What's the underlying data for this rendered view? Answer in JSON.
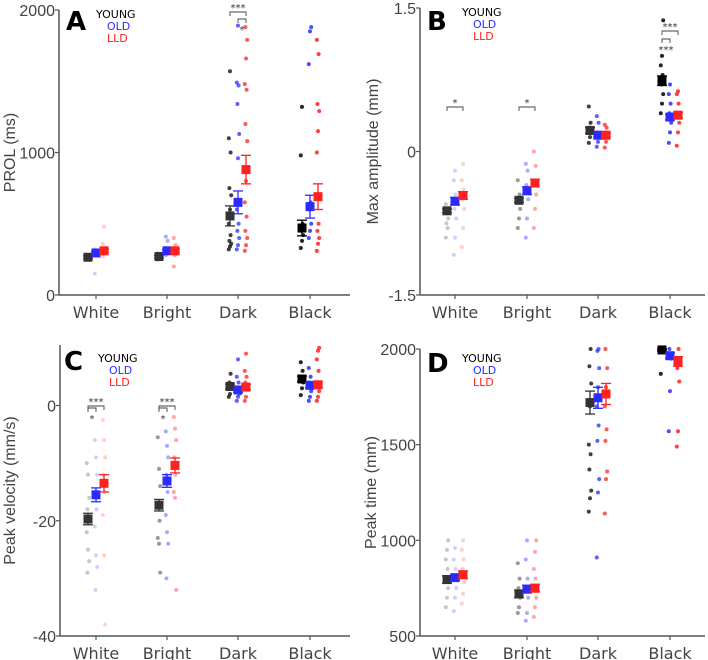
{
  "legend": [
    {
      "name": "YOUNG",
      "color": "#000000"
    },
    {
      "name": "OLD",
      "color": "#2b2bff"
    },
    {
      "name": "LLD",
      "color": "#ff2020"
    }
  ],
  "chart_data": [
    {
      "type": "scatter",
      "panel": "A",
      "ylabel": "PROL (ms)",
      "ylim": [
        0,
        2000
      ],
      "yticks": [
        "0",
        "1000",
        "2000"
      ],
      "ytick_values": [
        0,
        1000,
        2000
      ],
      "categories": [
        "White",
        "Bright",
        "Dark",
        "Black"
      ],
      "means": {
        "YOUNG": [
          265,
          270,
          555,
          470
        ],
        "OLD": [
          295,
          310,
          650,
          620
        ],
        "LLD": [
          310,
          310,
          880,
          690
        ]
      },
      "sem": {
        "YOUNG": [
          10,
          10,
          70,
          55
        ],
        "OLD": [
          10,
          10,
          80,
          80
        ],
        "LLD": [
          12,
          12,
          100,
          90
        ]
      },
      "points": {
        "YOUNG": [
          [
            250,
            255,
            260,
            265,
            270,
            275,
            280,
            260
          ],
          [
            250,
            260,
            265,
            270,
            280,
            290
          ],
          [
            320,
            340,
            360,
            380,
            420,
            500,
            600,
            700,
            750,
            1000,
            1100,
            1570
          ],
          [
            330,
            380,
            420,
            450,
            500,
            980,
            1320
          ]
        ],
        "OLD": [
          [
            150,
            280,
            290,
            300,
            310,
            320,
            300
          ],
          [
            280,
            300,
            310,
            330,
            380,
            410
          ],
          [
            320,
            350,
            400,
            450,
            500,
            600,
            960,
            1130,
            1340,
            1470,
            1490,
            1890
          ],
          [
            400,
            450,
            500,
            600,
            650,
            1620,
            1850,
            1880
          ]
        ],
        "LLD": [
          [
            270,
            290,
            300,
            310,
            330,
            360,
            480
          ],
          [
            200,
            280,
            300,
            320,
            350,
            400
          ],
          [
            310,
            350,
            400,
            450,
            550,
            650,
            800,
            1080,
            1200,
            1440,
            1480,
            1660,
            1790,
            1880
          ],
          [
            310,
            360,
            400,
            450,
            500,
            1000,
            1150,
            1290,
            1340,
            1690,
            1790
          ]
        ]
      },
      "significance": [
        {
          "category": "Dark",
          "from": "YOUNG",
          "to": "LLD",
          "label": "***"
        },
        {
          "category": "Dark",
          "from": "OLD",
          "to": "LLD",
          "label": "*"
        }
      ]
    },
    {
      "type": "scatter",
      "panel": "B",
      "ylabel": "Max amplitude (mm)",
      "ylim": [
        -1.5,
        1.5
      ],
      "yticks": [
        "-1.5",
        "0",
        "1.5"
      ],
      "ytick_values": [
        -1.5,
        0,
        1.5
      ],
      "categories": [
        "White",
        "Bright",
        "Dark",
        "Black"
      ],
      "means": {
        "YOUNG": [
          -0.62,
          -0.51,
          0.22,
          0.74
        ],
        "OLD": [
          -0.52,
          -0.41,
          0.17,
          0.36
        ],
        "LLD": [
          -0.46,
          -0.33,
          0.17,
          0.38
        ]
      },
      "sem": {
        "YOUNG": [
          0.02,
          0.02,
          0.03,
          0.05
        ],
        "OLD": [
          0.04,
          0.04,
          0.02,
          0.03
        ],
        "LLD": [
          0.04,
          0.04,
          0.02,
          0.03
        ]
      },
      "points": {
        "YOUNG": [
          [
            -0.55,
            -0.6,
            -0.7,
            -0.75,
            -0.8,
            -0.9,
            -0.6
          ],
          [
            -0.8,
            -0.7,
            -0.6,
            -0.5,
            -0.45,
            -0.3
          ],
          [
            0.09,
            0.15,
            0.2,
            0.25,
            0.3,
            0.47
          ],
          [
            0.4,
            0.5,
            0.6,
            0.7,
            0.8,
            0.9,
            1.0,
            1.37
          ]
        ],
        "OLD": [
          [
            -1.08,
            -0.9,
            -0.7,
            -0.6,
            -0.45,
            -0.3,
            -0.2
          ],
          [
            -0.9,
            -0.7,
            -0.5,
            -0.35,
            -0.2,
            -0.13
          ],
          [
            0.05,
            0.1,
            0.15,
            0.2,
            0.3,
            0.37
          ],
          [
            0.09,
            0.2,
            0.3,
            0.4,
            0.5,
            0.6,
            0.7
          ]
        ],
        "LLD": [
          [
            -1.0,
            -0.8,
            -0.6,
            -0.5,
            -0.4,
            -0.3,
            -0.13
          ],
          [
            -0.8,
            -0.6,
            -0.45,
            -0.3,
            -0.15,
            0
          ],
          [
            0.04,
            0.1,
            0.15,
            0.2,
            0.25,
            0.28
          ],
          [
            0.06,
            0.2,
            0.3,
            0.4,
            0.5,
            0.6,
            0.63
          ]
        ]
      },
      "significance": [
        {
          "category": "White",
          "from": "YOUNG",
          "to": "LLD",
          "label": "*"
        },
        {
          "category": "Bright",
          "from": "YOUNG",
          "to": "LLD",
          "label": "*"
        },
        {
          "category": "Black",
          "from": "YOUNG",
          "to": "LLD",
          "label": "***"
        },
        {
          "category": "Black",
          "from": "YOUNG",
          "to": "OLD",
          "label": "***"
        }
      ]
    },
    {
      "type": "scatter",
      "panel": "C",
      "ylabel": "Peak velocity (mm/s)",
      "ylim": [
        -40,
        10.5
      ],
      "yticks": [
        "-40",
        "-20",
        "0"
      ],
      "ytick_values": [
        -40,
        -20,
        0
      ],
      "categories": [
        "White",
        "Bright",
        "Dark",
        "Black"
      ],
      "means": {
        "YOUNG": [
          -19.7,
          -17.3,
          3.3,
          4.6
        ],
        "OLD": [
          -15.5,
          -13.1,
          2.7,
          3.5
        ],
        "LLD": [
          -13.5,
          -10.4,
          3.2,
          3.6
        ]
      },
      "sem": {
        "YOUNG": [
          1.0,
          1.0,
          0.4,
          0.5
        ],
        "OLD": [
          1.2,
          1.1,
          0.4,
          0.4
        ],
        "LLD": [
          1.5,
          1.3,
          0.5,
          0.5
        ]
      },
      "points": {
        "YOUNG": [
          [
            -10,
            -12,
            -16,
            -18,
            -20,
            -22,
            -25,
            -27,
            -29
          ],
          [
            -5.5,
            -11,
            -14,
            -17,
            -20,
            -23,
            -24,
            -29
          ],
          [
            1.5,
            2,
            3,
            4,
            5.5
          ],
          [
            1.8,
            3,
            4,
            5,
            6,
            7.5
          ]
        ],
        "OLD": [
          [
            -6,
            -9,
            -12,
            -15,
            -18,
            -21,
            -26,
            -28,
            -32
          ],
          [
            -4.5,
            -7,
            -9,
            -12,
            -15,
            -19,
            -22,
            -24,
            -30
          ],
          [
            0.8,
            1.5,
            2,
            3,
            4,
            5,
            8
          ],
          [
            0.8,
            1.5,
            2.5,
            4,
            5,
            6.5
          ]
        ],
        "LLD": [
          [
            -2.5,
            -6,
            -9,
            -12,
            -15,
            -19,
            -26,
            -38
          ],
          [
            -2,
            -4,
            -6,
            -9,
            -12,
            -15,
            -16,
            -32
          ],
          [
            0.8,
            1.5,
            3,
            4,
            5,
            6,
            9
          ],
          [
            0.8,
            1.5,
            2.5,
            4,
            6,
            8,
            9.5,
            10
          ]
        ]
      },
      "significance": [
        {
          "category": "White",
          "from": "YOUNG",
          "to": "LLD",
          "label": "***"
        },
        {
          "category": "White",
          "from": "YOUNG",
          "to": "OLD",
          "label": "*"
        },
        {
          "category": "Bright",
          "from": "YOUNG",
          "to": "LLD",
          "label": "***"
        },
        {
          "category": "Bright",
          "from": "YOUNG",
          "to": "OLD",
          "label": "*"
        }
      ]
    },
    {
      "type": "scatter",
      "panel": "D",
      "ylabel": "Peak time (mm)",
      "ylim": [
        500,
        2000
      ],
      "yticks": [
        "500",
        "1000",
        "1500",
        "2000"
      ],
      "ytick_values": [
        500,
        1000,
        1500,
        2000
      ],
      "categories": [
        "White",
        "Bright",
        "Dark",
        "Black"
      ],
      "means": {
        "YOUNG": [
          795,
          720,
          1720,
          1995
        ],
        "OLD": [
          805,
          745,
          1745,
          1965
        ],
        "LLD": [
          820,
          750,
          1765,
          1935
        ]
      },
      "sem": {
        "YOUNG": [
          20,
          20,
          60,
          5
        ],
        "OLD": [
          15,
          20,
          55,
          15
        ],
        "LLD": [
          20,
          20,
          55,
          25
        ]
      },
      "points": {
        "YOUNG": [
          [
            650,
            700,
            750,
            800,
            850,
            900,
            950,
            1000
          ],
          [
            620,
            650,
            700,
            750,
            800,
            880
          ],
          [
            1150,
            1220,
            1260,
            1370,
            1450,
            1500,
            1700,
            1820,
            1910,
            2000
          ],
          [
            1870,
            1990,
            2000
          ]
        ],
        "OLD": [
          [
            630,
            700,
            750,
            800,
            850,
            900,
            960
          ],
          [
            580,
            620,
            700,
            750,
            800,
            900,
            1000
          ],
          [
            910,
            1250,
            1320,
            1520,
            1600,
            1700,
            1800,
            1900,
            1990,
            2000
          ],
          [
            1570,
            1780,
            1950,
            2000
          ]
        ],
        "LLD": [
          [
            670,
            720,
            780,
            850,
            900,
            950,
            1000
          ],
          [
            600,
            650,
            700,
            750,
            800,
            850,
            940,
            1000
          ],
          [
            1140,
            1320,
            1360,
            1520,
            1580,
            1700,
            1800,
            1900,
            2000
          ],
          [
            1490,
            1570,
            1830,
            1900,
            2000
          ]
        ]
      },
      "significance": []
    }
  ]
}
